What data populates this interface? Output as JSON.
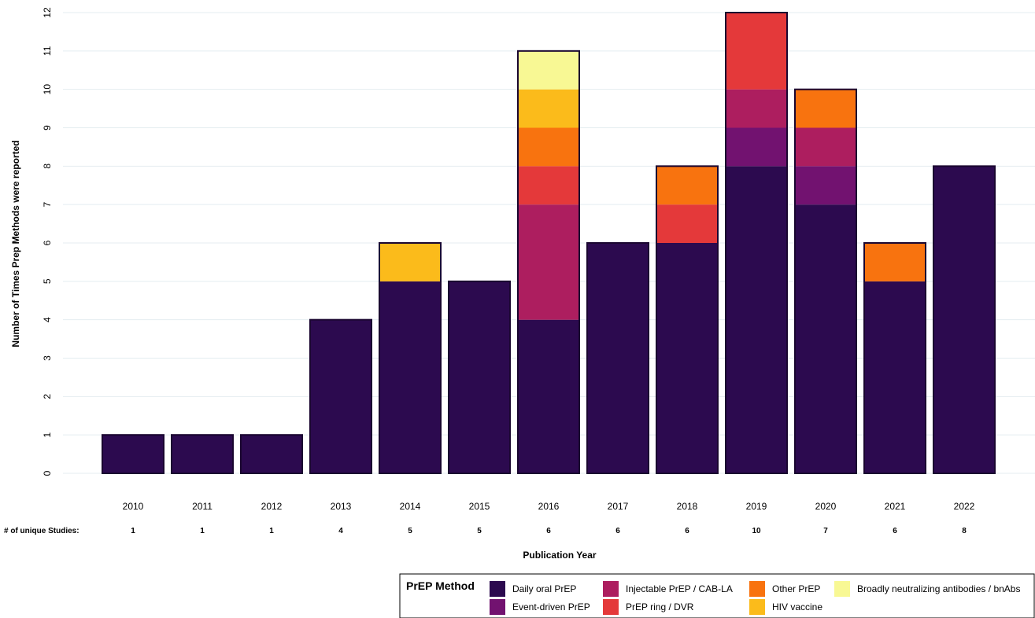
{
  "chart_data": {
    "type": "bar",
    "stacked": true,
    "ylabel": "Number of Times Prep Methods were reported",
    "xlabel": "Publication Year",
    "ylim": [
      0,
      12
    ],
    "yticks": [
      0,
      1,
      2,
      3,
      4,
      5,
      6,
      7,
      8,
      9,
      10,
      11,
      12
    ],
    "grid": true,
    "categories": [
      "2010",
      "2011",
      "2012",
      "2013",
      "2014",
      "2015",
      "2016",
      "2017",
      "2018",
      "2019",
      "2020",
      "2021",
      "2022"
    ],
    "series": [
      {
        "name": "Daily oral PrEP",
        "color": "#2c0a4f",
        "values": [
          1,
          1,
          1,
          4,
          5,
          5,
          4,
          6,
          6,
          8,
          7,
          5,
          8
        ]
      },
      {
        "name": "Event-driven PrEP",
        "color": "#721270",
        "values": [
          0,
          0,
          0,
          0,
          0,
          0,
          0,
          0,
          0,
          1,
          1,
          0,
          0
        ]
      },
      {
        "name": "Injectable PrEP / CAB-LA",
        "color": "#ad1e5f",
        "values": [
          0,
          0,
          0,
          0,
          0,
          0,
          3,
          0,
          0,
          1,
          1,
          0,
          0
        ]
      },
      {
        "name": "PrEP ring / DVR",
        "color": "#e4393a",
        "values": [
          0,
          0,
          0,
          0,
          0,
          0,
          1,
          0,
          1,
          2,
          0,
          0,
          0
        ]
      },
      {
        "name": "Other PrEP",
        "color": "#f8730f",
        "values": [
          0,
          0,
          0,
          0,
          0,
          0,
          1,
          0,
          1,
          0,
          1,
          1,
          0
        ]
      },
      {
        "name": "HIV vaccine",
        "color": "#fbbb1b",
        "values": [
          0,
          0,
          0,
          0,
          1,
          0,
          1,
          0,
          0,
          0,
          0,
          0,
          0
        ]
      },
      {
        "name": "Broadly neutralizing antibodies / bnAbs",
        "color": "#f8f894",
        "values": [
          0,
          0,
          0,
          0,
          0,
          0,
          1,
          0,
          0,
          0,
          0,
          0,
          0
        ]
      }
    ],
    "unique_studies_label": "# of unique Studies:",
    "unique_studies": [
      "1",
      "1",
      "1",
      "4",
      "5",
      "5",
      "6",
      "6",
      "6",
      "10",
      "7",
      "6",
      "8"
    ],
    "legend": {
      "title": "PrEP Method",
      "placement": "bottom-right"
    }
  }
}
